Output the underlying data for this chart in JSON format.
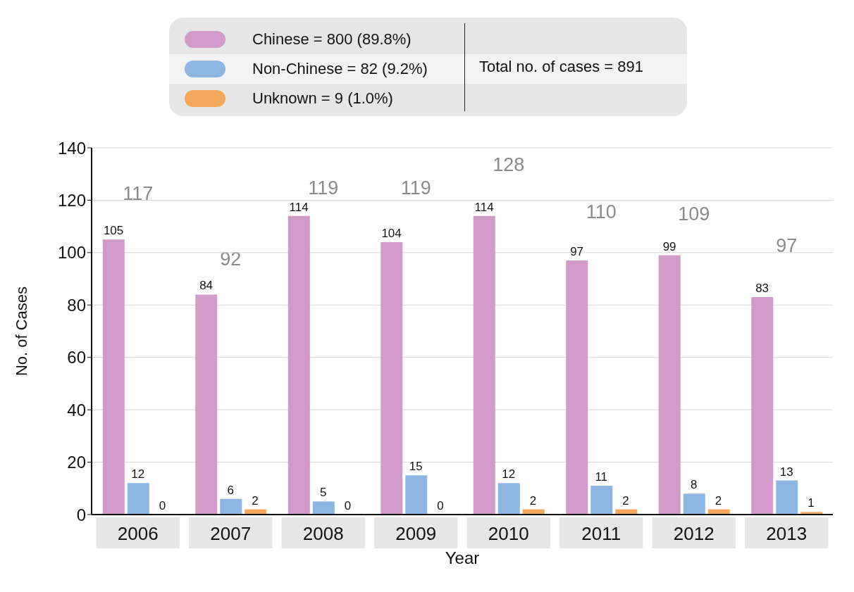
{
  "chart_data": {
    "type": "bar",
    "xlabel": "Year",
    "ylabel": "No. of Cases",
    "categories": [
      "2006",
      "2007",
      "2008",
      "2009",
      "2010",
      "2011",
      "2012",
      "2013"
    ],
    "series": [
      {
        "name": "Chinese = 800 (89.8%)",
        "color": "#d29ac8",
        "values": [
          105,
          84,
          114,
          104,
          114,
          97,
          99,
          83
        ]
      },
      {
        "name": "Non-Chinese = 82 (9.2%)",
        "color": "#8db6e3",
        "values": [
          12,
          6,
          5,
          15,
          12,
          11,
          8,
          13
        ]
      },
      {
        "name": "Unknown = 9 (1.0%)",
        "color": "#f5a85c",
        "values": [
          0,
          2,
          0,
          0,
          2,
          2,
          2,
          1
        ]
      }
    ],
    "totals": [
      "117",
      "92",
      "119",
      "119",
      "128",
      "110",
      "109",
      "97"
    ],
    "annotations": [
      "Total no. of cases = 891"
    ],
    "ylim": [
      0,
      140
    ],
    "yticks": [
      0,
      20,
      40,
      60,
      80,
      100,
      120,
      140
    ],
    "grid": "y",
    "legend": "top",
    "data_labels": true
  }
}
